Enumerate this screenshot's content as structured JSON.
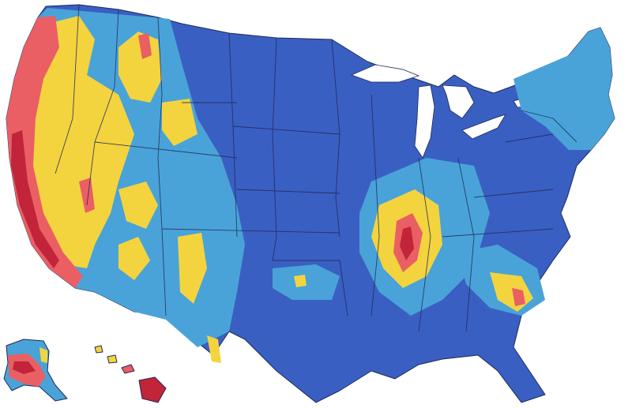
{
  "map": {
    "colors": {
      "very_low": "#3a5fc2",
      "low": "#4aa3d8",
      "moderate": "#f3d43f",
      "high": "#ea5f63",
      "very_high": "#c2243a",
      "no_data": "#a0a0a0",
      "water": "#ffffff",
      "border": "#1d2a56"
    },
    "regions": [
      "contiguous-us",
      "alaska",
      "hawaii"
    ]
  }
}
